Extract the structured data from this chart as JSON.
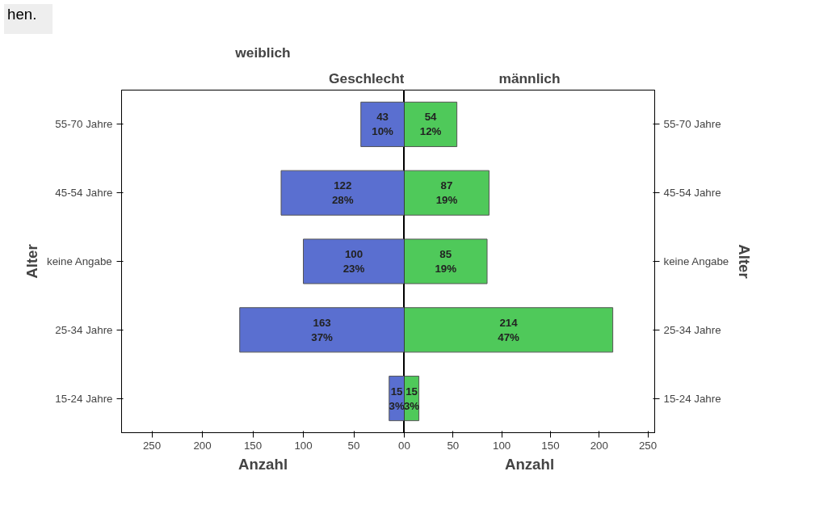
{
  "chart_data": [
    {
      "type": "bar",
      "orientation": "horizontal",
      "title": "Geschlecht",
      "subtitle": "weiblich",
      "xlabel": "Anzahl",
      "ylabel": "Alter",
      "annotations": [
        "hen."
      ],
      "categories": [
        "55-70 Jahre",
        "45-54 Jahre",
        "keine Angabe",
        "25-34 Jahre",
        "15-24 Jahre"
      ],
      "series": [
        {
          "color": "#5a6fd0",
          "values": [
            43,
            122,
            100,
            163,
            15
          ],
          "value_labels": [
            "43\n10%",
            "122\n28%",
            "100\n23%",
            "163\n37%",
            "15\n3%"
          ]
        }
      ],
      "xlim": [
        280,
        0
      ],
      "xticks": [
        250,
        200,
        150,
        100,
        50,
        0
      ],
      "grid": false
    },
    {
      "type": "bar",
      "orientation": "horizontal",
      "subtitle": "männlich",
      "xlabel": "Anzahl",
      "ylabel": "Alter",
      "categories": [
        "55-70 Jahre",
        "45-54 Jahre",
        "keine Angabe",
        "25-34 Jahre",
        "15-24 Jahre"
      ],
      "series": [
        {
          "color": "#4fc95a",
          "values": [
            54,
            87,
            85,
            214,
            15
          ],
          "value_labels": [
            "54\n12%",
            "87\n19%",
            "85\n19%",
            "214\n47%",
            "15\n3%"
          ]
        }
      ],
      "xlim": [
        0,
        257
      ],
      "xticks": [
        0,
        50,
        100,
        150,
        200,
        250
      ],
      "grid": false
    }
  ]
}
